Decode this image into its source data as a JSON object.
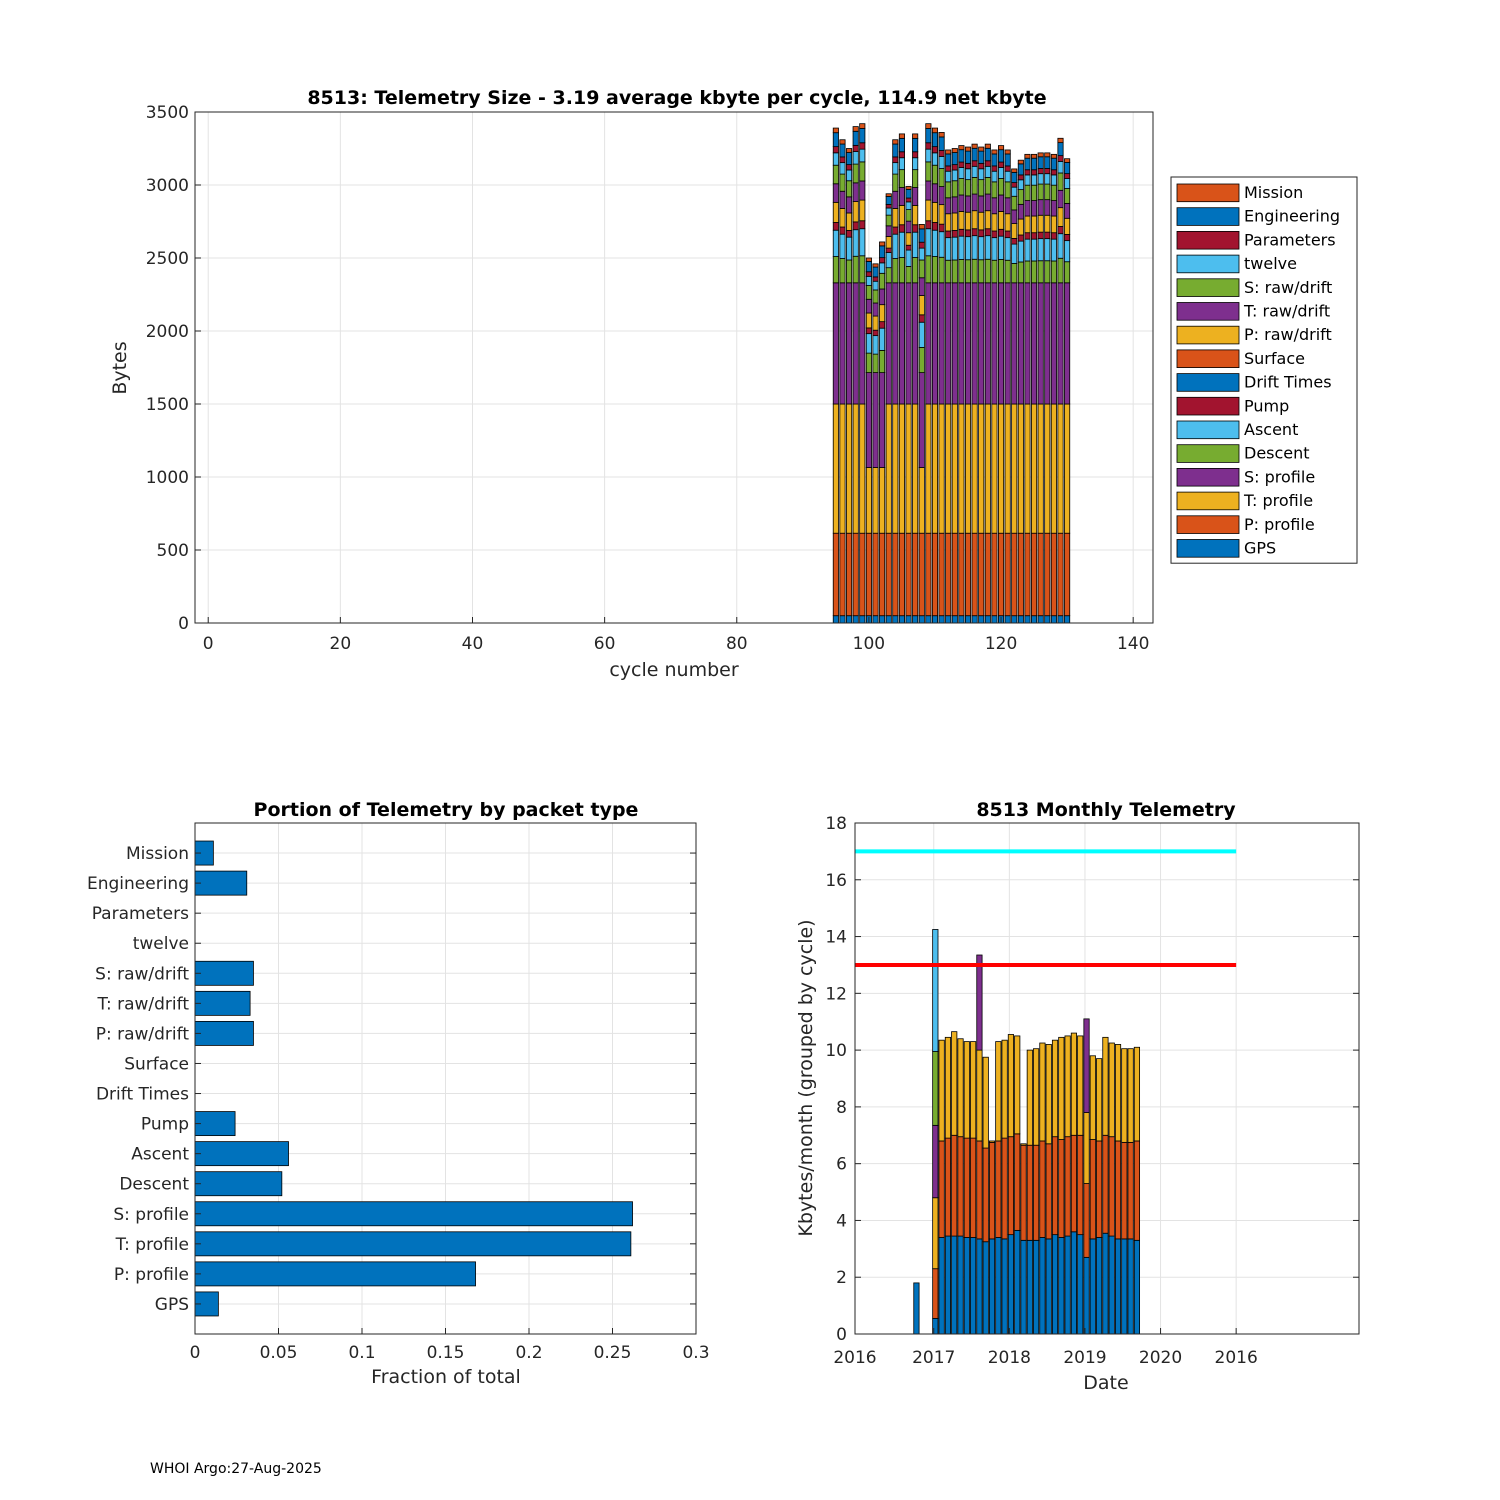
{
  "footer": "WHOI Argo:27-Aug-2025",
  "colors": {
    "Mission": "#d95319",
    "Engineering": "#0072bd",
    "Parameters": "#a2142f",
    "twelve": "#4dbeee",
    "S: raw/drift": "#77ac30",
    "T: raw/drift": "#7e2f8e",
    "P: raw/drift": "#edb120",
    "Surface": "#d95319",
    "Drift Times": "#0072bd",
    "Pump": "#a2142f",
    "Ascent": "#4dbeee",
    "Descent": "#77ac30",
    "S: profile": "#7e2f8e",
    "T: profile": "#edb120",
    "P: profile": "#d95319",
    "GPS": "#0072bd",
    "limit_high": "#00ffff",
    "limit_low": "#ff0000"
  },
  "chart_data": [
    {
      "type": "bar",
      "stacked": true,
      "title": "8513: Telemetry Size - 3.19 average kbyte per cycle,  114.9 net kbyte",
      "xlabel": "cycle number",
      "ylabel": "Bytes",
      "xlim": [
        -2,
        143
      ],
      "ylim": [
        0,
        3500
      ],
      "xticks": [
        0,
        20,
        40,
        60,
        80,
        100,
        120,
        140
      ],
      "yticks": [
        0,
        500,
        1000,
        1500,
        2000,
        2500,
        3000,
        3500
      ],
      "grid": true,
      "legend_position": "right",
      "legend": [
        "Mission",
        "Engineering",
        "Parameters",
        "twelve",
        "S: raw/drift",
        "T: raw/drift",
        "P: raw/drift",
        "Surface",
        "Drift Times",
        "Pump",
        "Ascent",
        "Descent",
        "S: profile",
        "T: profile",
        "P: profile",
        "GPS"
      ],
      "stack_order": [
        "GPS",
        "P: profile",
        "T: profile",
        "S: profile",
        "Descent",
        "Ascent",
        "Pump",
        "Drift Times",
        "Surface",
        "P: raw/drift",
        "T: raw/drift",
        "S: raw/drift",
        "twelve",
        "Parameters",
        "Engineering",
        "Mission"
      ],
      "cycles": [
        95,
        96,
        97,
        98,
        99,
        100,
        101,
        102,
        103,
        104,
        105,
        106,
        107,
        108,
        109,
        110,
        111,
        112,
        113,
        114,
        115,
        116,
        117,
        118,
        119,
        120,
        121,
        122,
        123,
        124,
        125,
        126,
        127,
        128,
        129,
        130
      ],
      "totals": [
        3390,
        3310,
        3250,
        3400,
        3420,
        2500,
        2460,
        2610,
        2940,
        3310,
        3350,
        2990,
        3350,
        2730,
        3420,
        3390,
        3360,
        3240,
        3250,
        3270,
        3260,
        3280,
        3260,
        3280,
        3240,
        3270,
        3240,
        3110,
        3170,
        3210,
        3210,
        3220,
        3220,
        3210,
        3320,
        3180
      ],
      "profile_fraction_base": {
        "GPS": 50,
        "P: profile": 565,
        "T: profile": 885,
        "S: profile": 830
      }
    },
    {
      "type": "barh",
      "title": "Portion of Telemetry by packet type",
      "xlabel": "Fraction of total",
      "xlim": [
        0,
        0.3
      ],
      "xticks": [
        "0",
        "0.05",
        "0.1",
        "0.15",
        "0.2",
        "0.25",
        "0.3"
      ],
      "categories": [
        "GPS",
        "P: profile",
        "T: profile",
        "S: profile",
        "Descent",
        "Ascent",
        "Pump",
        "Drift Times",
        "Surface",
        "P: raw/drift",
        "T: raw/drift",
        "S: raw/drift",
        "twelve",
        "Parameters",
        "Engineering",
        "Mission"
      ],
      "values": [
        0.014,
        0.168,
        0.261,
        0.262,
        0.052,
        0.056,
        0.024,
        0,
        0,
        0.035,
        0.033,
        0.035,
        0,
        0,
        0.031,
        0.011
      ],
      "grid": true
    },
    {
      "type": "bar",
      "stacked": true,
      "title": "8513 Monthly Telemetry",
      "xlabel": "Date",
      "ylabel": "Kbytes/month (grouped by cycle)",
      "ylim": [
        0,
        18
      ],
      "yticks": [
        0,
        2,
        4,
        6,
        8,
        10,
        12,
        14,
        16,
        18
      ],
      "xtick_labels": [
        "2016",
        "2017",
        "2018",
        "2019",
        "2020",
        "2016"
      ],
      "grid": true,
      "reference_lines": [
        {
          "name": "upper limit",
          "y": 17,
          "color": "#00ffff"
        },
        {
          "name": "lower limit",
          "y": 13,
          "color": "#ff0000"
        }
      ],
      "months": [
        {
          "x": 9.75,
          "GPS": 1.8
        },
        {
          "x": 12.75,
          "GPS": 0.55,
          "P: profile": 1.75,
          "T: profile": 2.5,
          "S: profile": 2.55,
          "Descent": 2.6,
          "Ascent": 4.3
        },
        {
          "x": 13.75,
          "GPS": 3.4,
          "P: profile": 3.4,
          "T: profile": 3.55
        },
        {
          "x": 14.75,
          "GPS": 3.45,
          "P: profile": 3.45,
          "T: profile": 3.55
        },
        {
          "x": 15.75,
          "GPS": 3.45,
          "P: profile": 3.55,
          "T: profile": 3.65
        },
        {
          "x": 16.75,
          "GPS": 3.45,
          "P: profile": 3.5,
          "T: profile": 3.45
        },
        {
          "x": 17.75,
          "GPS": 3.4,
          "P: profile": 3.5,
          "T: profile": 3.4
        },
        {
          "x": 18.75,
          "GPS": 3.4,
          "P: profile": 3.5,
          "T: profile": 3.4
        },
        {
          "x": 19.75,
          "GPS": 3.35,
          "P: profile": 3.45,
          "T: profile": 3.2,
          "S: profile": 3.35
        },
        {
          "x": 20.75,
          "GPS": 3.25,
          "P: profile": 3.3,
          "T: profile": 3.2
        },
        {
          "x": 21.75,
          "GPS": 3.35,
          "P: profile": 3.4,
          "T: profile": 0.05
        },
        {
          "x": 22.75,
          "GPS": 3.4,
          "P: profile": 3.4,
          "T: profile": 3.5
        },
        {
          "x": 23.75,
          "GPS": 3.35,
          "P: profile": 3.55,
          "T: profile": 3.45
        },
        {
          "x": 24.75,
          "GPS": 3.5,
          "P: profile": 3.45,
          "T: profile": 3.6
        },
        {
          "x": 25.75,
          "GPS": 3.65,
          "P: profile": 3.4,
          "T: profile": 3.45
        },
        {
          "x": 26.75,
          "GPS": 3.3,
          "P: profile": 3.35,
          "T: profile": 0.05
        },
        {
          "x": 27.75,
          "GPS": 3.3,
          "P: profile": 3.35,
          "T: profile": 3.35
        },
        {
          "x": 28.75,
          "GPS": 3.3,
          "P: profile": 3.35,
          "T: profile": 3.4
        },
        {
          "x": 29.75,
          "GPS": 3.4,
          "P: profile": 3.4,
          "T: profile": 3.45
        },
        {
          "x": 30.75,
          "GPS": 3.35,
          "P: profile": 3.35,
          "T: profile": 3.5
        },
        {
          "x": 31.75,
          "GPS": 3.5,
          "P: profile": 3.45,
          "T: profile": 3.4
        },
        {
          "x": 32.75,
          "GPS": 3.4,
          "P: profile": 3.45,
          "T: profile": 3.6
        },
        {
          "x": 33.75,
          "GPS": 3.45,
          "P: profile": 3.5,
          "T: profile": 3.55
        },
        {
          "x": 34.75,
          "GPS": 3.6,
          "P: profile": 3.4,
          "T: profile": 3.6
        },
        {
          "x": 35.75,
          "GPS": 3.5,
          "P: profile": 3.5,
          "T: profile": 3.5
        },
        {
          "x": 36.75,
          "GPS": 2.7,
          "P: profile": 2.6,
          "T: profile": 2.5,
          "S: profile": 3.3
        },
        {
          "x": 37.75,
          "GPS": 3.35,
          "P: profile": 3.5,
          "T: profile": 2.95
        },
        {
          "x": 38.75,
          "GPS": 3.4,
          "P: profile": 3.4,
          "T: profile": 2.9
        },
        {
          "x": 39.75,
          "GPS": 3.55,
          "P: profile": 3.45,
          "T: profile": 3.45
        },
        {
          "x": 40.75,
          "GPS": 3.45,
          "P: profile": 3.5,
          "T: profile": 3.3
        },
        {
          "x": 41.75,
          "GPS": 3.35,
          "P: profile": 3.45,
          "T: profile": 3.4
        },
        {
          "x": 42.75,
          "GPS": 3.35,
          "P: profile": 3.4,
          "T: profile": 3.3
        },
        {
          "x": 43.75,
          "GPS": 3.35,
          "P: profile": 3.4,
          "T: profile": 3.3
        },
        {
          "x": 44.75,
          "GPS": 3.3,
          "P: profile": 3.5,
          "T: profile": 3.3
        }
      ],
      "xmap": {
        "2016_start": 0,
        "2017": 12.5,
        "2018": 24.5,
        "2019": 36.5,
        "2020": 48.5,
        "2016_end": 60.5,
        "xlim": [
          0,
          80
        ]
      }
    }
  ]
}
